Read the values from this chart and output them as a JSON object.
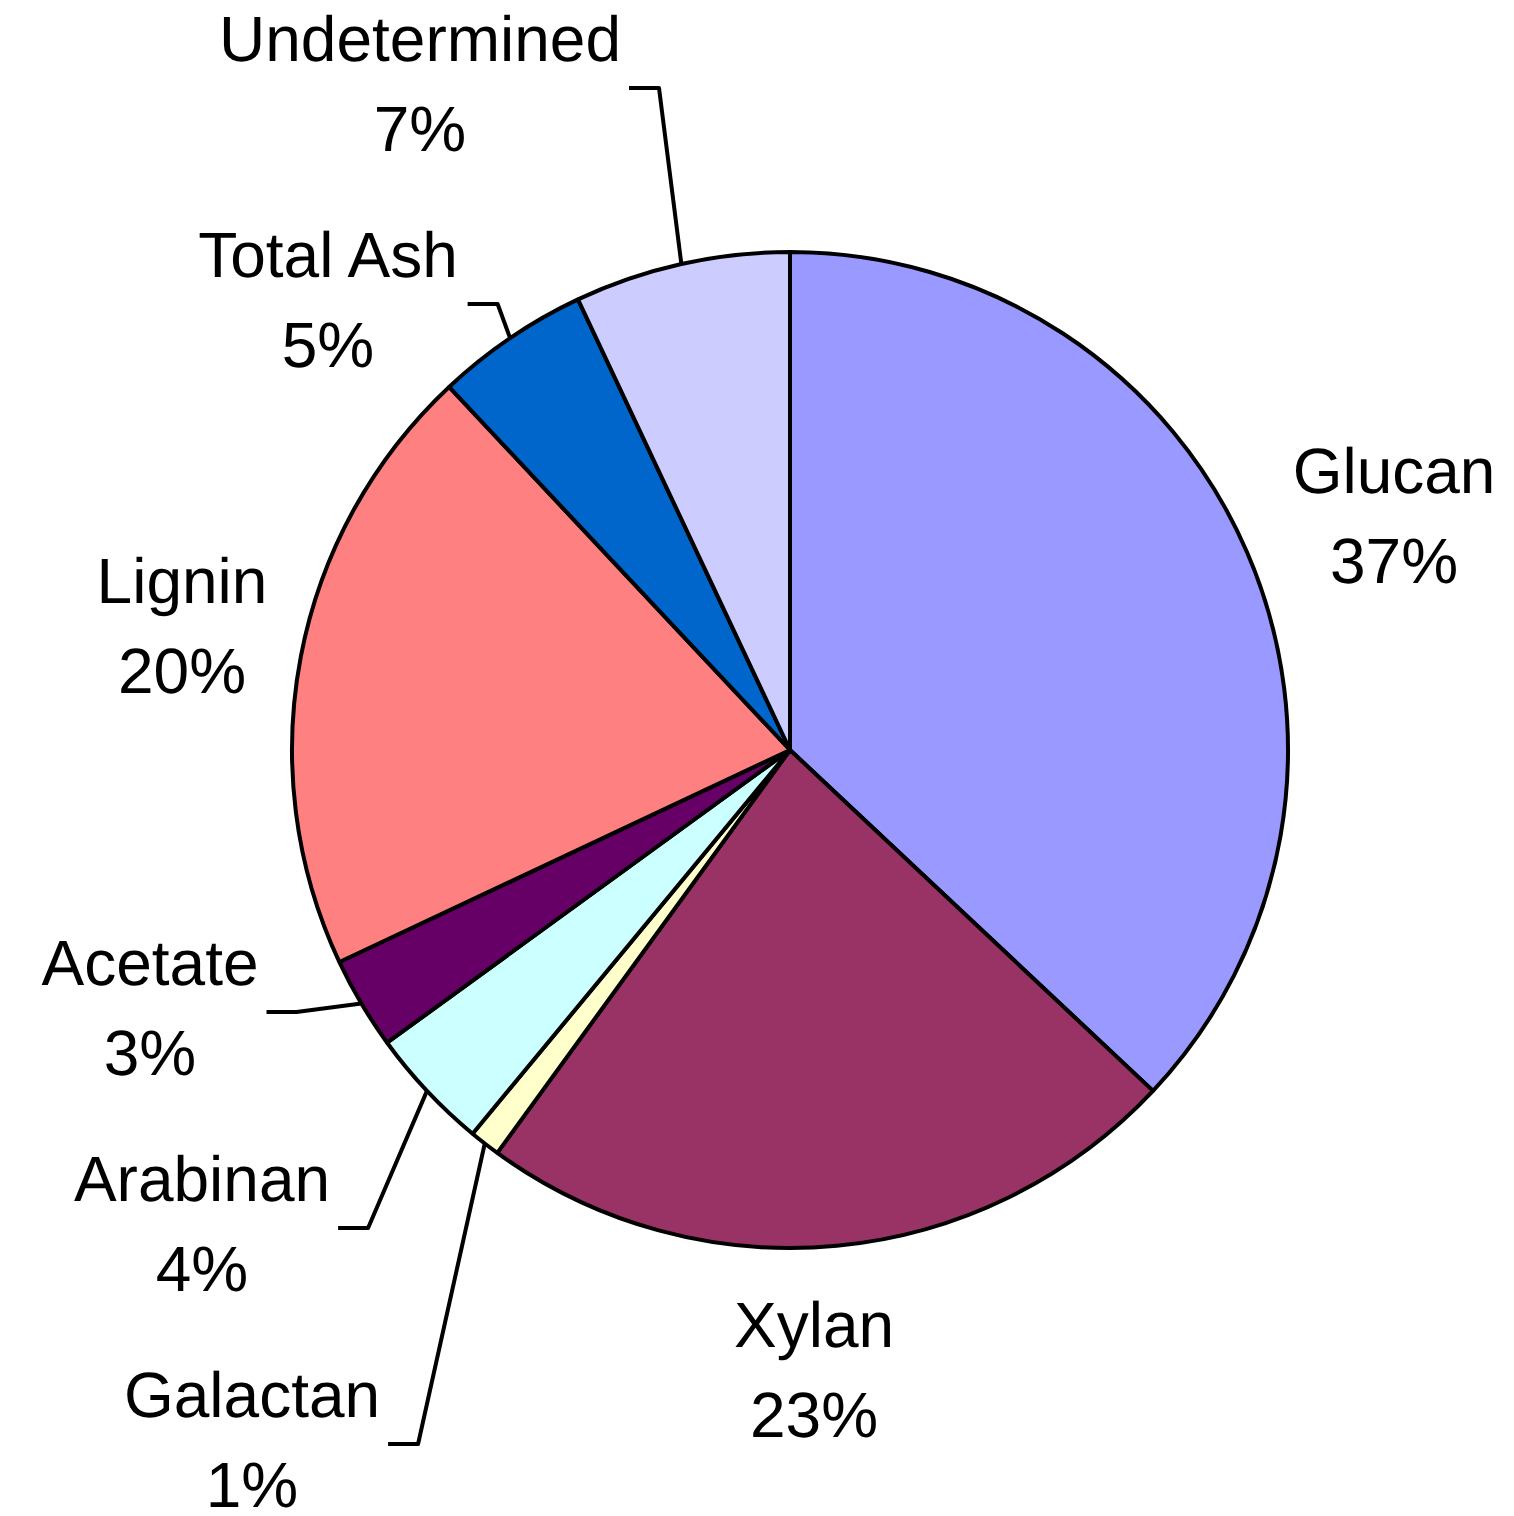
{
  "chart_data": {
    "type": "pie",
    "categories": [
      "Glucan",
      "Xylan",
      "Galactan",
      "Arabinan",
      "Acetate",
      "Lignin",
      "Total Ash",
      "Undetermined"
    ],
    "values": [
      37,
      23,
      1,
      4,
      3,
      20,
      5,
      7
    ],
    "colors": [
      "#9999ff",
      "#993366",
      "#ffffcc",
      "#ccffff",
      "#660066",
      "#ff8080",
      "#0066cc",
      "#ccccff"
    ],
    "value_labels": [
      "37%",
      "23%",
      "1%",
      "4%",
      "3%",
      "20%",
      "5%",
      "7%"
    ],
    "legend": false
  }
}
